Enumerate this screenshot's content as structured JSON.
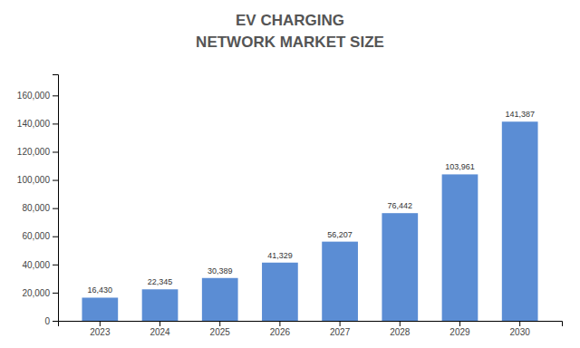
{
  "chart_data": {
    "type": "bar",
    "title": "EV CHARGING",
    "subtitle": "NETWORK MARKET SIZE",
    "categories": [
      "2023",
      "2024",
      "2025",
      "2026",
      "2027",
      "2028",
      "2029",
      "2030"
    ],
    "values": [
      16430,
      22345,
      30389,
      41329,
      56207,
      76442,
      103961,
      141387
    ],
    "value_labels": [
      "16,430",
      "22,345",
      "30,389",
      "41,329",
      "56,207",
      "76,442",
      "103,961",
      "141,387"
    ],
    "data_labels": true,
    "color": "#5b8dd4",
    "ylim": [
      0,
      175000
    ],
    "yticks": [
      0,
      {
        "value": 20000,
        "label": "20,000"
      },
      {
        "value": 40000,
        "label": "40,000"
      },
      {
        "value": 60000,
        "label": "60,000"
      },
      {
        "value": 80000,
        "label": "80,000"
      },
      {
        "value": 100000,
        "label": "100,000"
      },
      {
        "value": 120000,
        "label": "120,000"
      },
      {
        "value": 140000,
        "label": "140,000"
      },
      {
        "value": 160000,
        "label": "160,000"
      }
    ],
    "grid": false
  }
}
